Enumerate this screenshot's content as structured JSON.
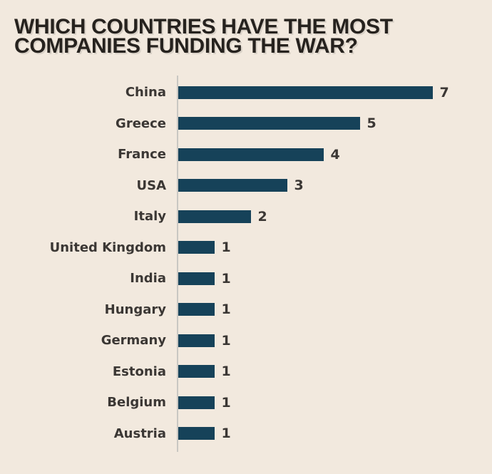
{
  "title": {
    "line1": "WHICH COUNTRIES HAVE THE MOST",
    "line2": "COMPANIES FUNDING THE WAR?"
  },
  "colors": {
    "background": "#f2e9de",
    "bar": "#164259",
    "title_text": "#26221e",
    "label_text": "#3b3734",
    "axis_line": "#c9c7c2"
  },
  "chart_data": {
    "type": "bar",
    "orientation": "horizontal",
    "title": "WHICH COUNTRIES HAVE THE MOST COMPANIES FUNDING THE WAR?",
    "categories": [
      "China",
      "Greece",
      "France",
      "USA",
      "Italy",
      "United Kingdom",
      "India",
      "Hungary",
      "Germany",
      "Estonia",
      "Belgium",
      "Austria"
    ],
    "values": [
      7,
      5,
      4,
      3,
      2,
      1,
      1,
      1,
      1,
      1,
      1,
      1
    ],
    "xlim": [
      0,
      7
    ],
    "value_labels_shown": true,
    "grid": false,
    "legend": false,
    "axis": "single vertical baseline at left of bars"
  }
}
